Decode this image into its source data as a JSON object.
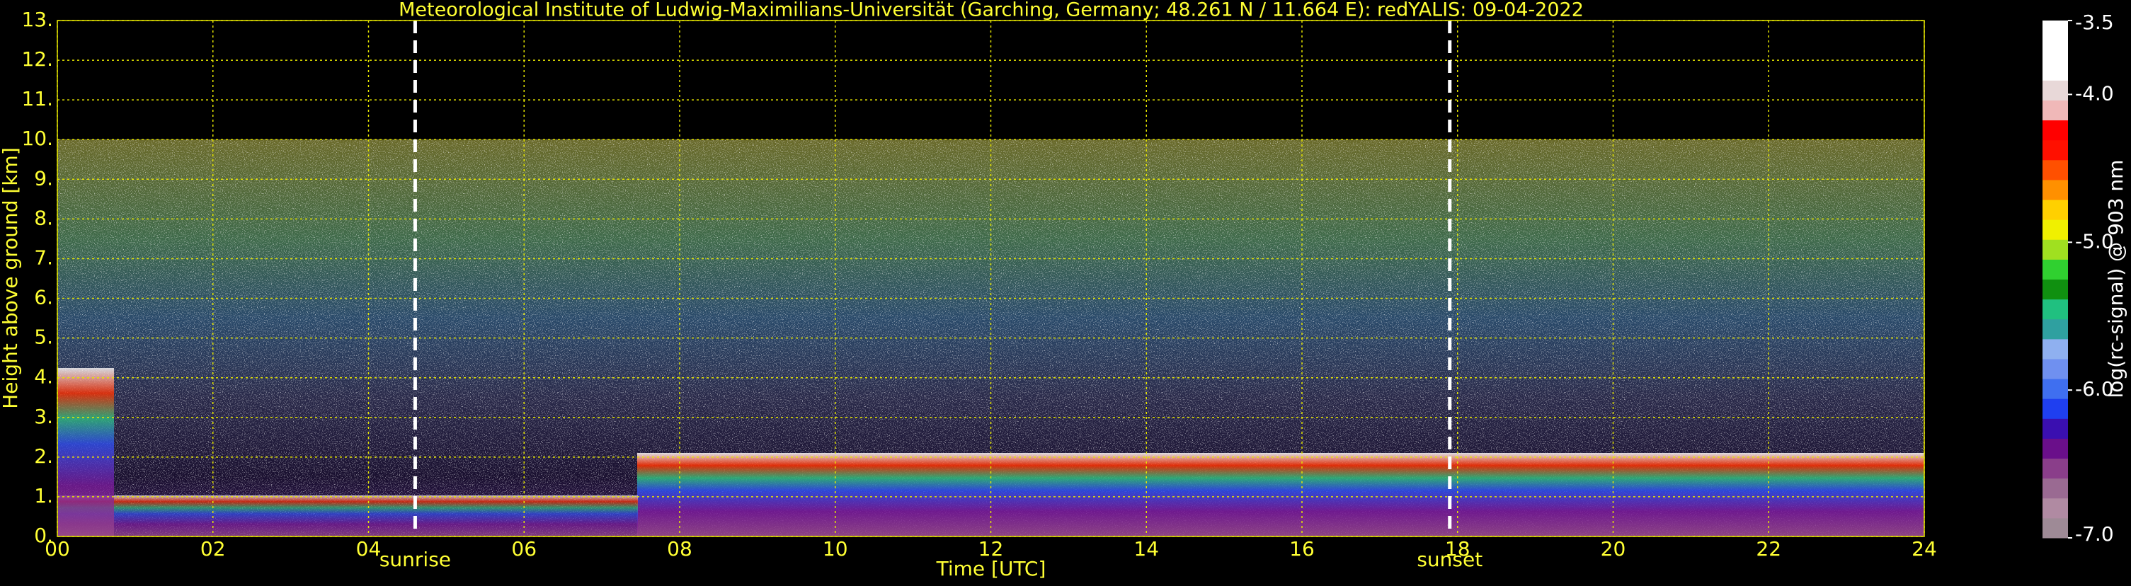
{
  "chart_data": {
    "type": "heatmap",
    "title": "Meteorological Institute of Ludwig-Maximilians-Universität (Garching, Germany; 48.261 N / 11.664 E):    redYALIS: 09-04-2022",
    "xlabel": "Time [UTC]",
    "ylabel": "Height above ground [km]",
    "xlim": [
      0,
      24
    ],
    "xticks": [
      {
        "value": 0,
        "label": "00"
      },
      {
        "value": 2,
        "label": "02"
      },
      {
        "value": 4,
        "label": "04"
      },
      {
        "value": 6,
        "label": "06"
      },
      {
        "value": 8,
        "label": "08"
      },
      10,
      12,
      14,
      16,
      18,
      20,
      22,
      24
    ],
    "ylim": [
      0,
      13
    ],
    "yticks": [
      {
        "value": 0,
        "label": "0."
      },
      {
        "value": 1,
        "label": "1."
      },
      {
        "value": 2,
        "label": "2."
      },
      {
        "value": 3,
        "label": "3."
      },
      {
        "value": 4,
        "label": "4."
      },
      {
        "value": 5,
        "label": "5."
      },
      {
        "value": 6,
        "label": "6."
      },
      {
        "value": 7,
        "label": "7."
      },
      {
        "value": 8,
        "label": "8."
      },
      {
        "value": 9,
        "label": "9."
      },
      {
        "value": 10,
        "label": "10."
      },
      {
        "value": 11,
        "label": "11."
      },
      {
        "value": 12,
        "label": "12."
      },
      {
        "value": 13,
        "label": "13."
      }
    ],
    "grid": true,
    "grid_color": "#e6e600",
    "annotations": [
      {
        "text": "sunrise",
        "x": 4.6
      },
      {
        "text": "sunset",
        "x": 17.9
      }
    ],
    "colorbar": {
      "label": "log(rc-signal) @ 903 nm",
      "lim": [
        -7.0,
        -3.5
      ],
      "ticks": [
        {
          "value": -3.5,
          "label": "-3.5"
        },
        {
          "value": -4.0,
          "label": "-4.0"
        },
        {
          "value": -5.0,
          "label": "-5.0"
        },
        {
          "value": -6.0,
          "label": "-6.0"
        },
        {
          "value": -7.0,
          "label": "-7.0"
        }
      ],
      "colors": [
        "#9e8a96",
        "#b08aa2",
        "#9a6a92",
        "#8a3e8a",
        "#6a0f8a",
        "#3a0fb0",
        "#1f3ff0",
        "#3f6ff0",
        "#6f90f0",
        "#8fb0f0",
        "#2fa0a0",
        "#20c080",
        "#109010",
        "#30d030",
        "#a0e020",
        "#f0f000",
        "#ffd000",
        "#ff9000",
        "#ff5000",
        "#ff1000",
        "#ff0000",
        "#f0b8b8",
        "#e8d8d8",
        "#ffffff",
        "#ffffff",
        "#ffffff"
      ]
    }
  }
}
